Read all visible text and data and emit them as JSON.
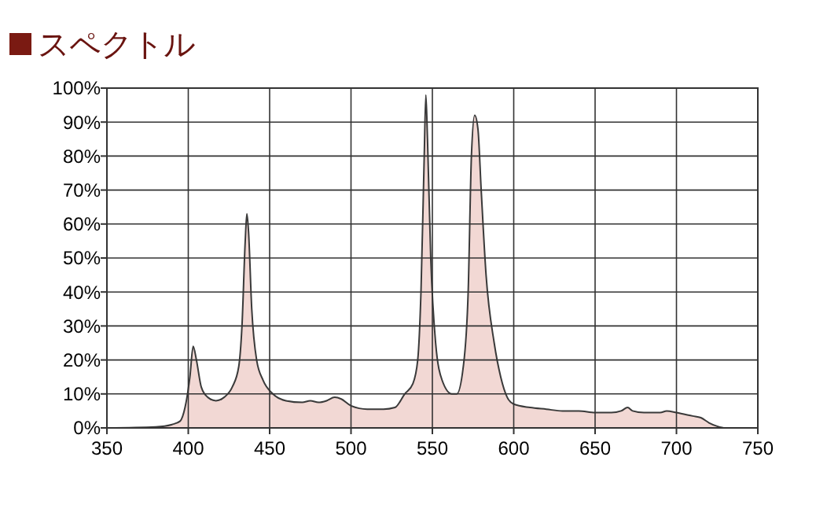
{
  "chart_data": {
    "type": "area",
    "title": "スペクトル",
    "color": "#f2d8d4",
    "x": [
      350,
      380,
      390,
      395,
      398,
      401,
      403,
      405,
      408,
      412,
      417,
      422,
      427,
      431,
      433,
      435,
      436,
      437,
      439,
      442,
      446,
      452,
      460,
      470,
      475,
      480,
      485,
      490,
      494,
      500,
      510,
      520,
      527,
      533,
      538,
      541,
      543,
      545,
      546,
      547,
      549,
      552,
      556,
      562,
      565,
      569,
      572,
      574,
      576,
      578,
      580,
      583,
      588,
      592,
      596,
      600,
      610,
      620,
      630,
      640,
      650,
      660,
      666,
      670,
      673,
      680,
      690,
      694,
      700,
      710,
      715,
      720,
      725,
      730,
      750
    ],
    "values": [
      0,
      0.3,
      1,
      2,
      6,
      15,
      24,
      20,
      12,
      9,
      8,
      9,
      12,
      18,
      30,
      55,
      63,
      58,
      35,
      20,
      14,
      10,
      8,
      7.5,
      8,
      7.5,
      8,
      9,
      8.5,
      6.5,
      5.5,
      5.5,
      6,
      10,
      13,
      20,
      40,
      80,
      98,
      85,
      50,
      25,
      14,
      10,
      10,
      18,
      40,
      80,
      92,
      88,
      70,
      45,
      25,
      15,
      9,
      7,
      6,
      5.5,
      5,
      5,
      4.5,
      4.5,
      5,
      6,
      5,
      4.5,
      4.5,
      5,
      4.5,
      3.5,
      3,
      1.5,
      0.5,
      0,
      0
    ],
    "xlim": [
      350,
      750
    ],
    "xticks": [
      350,
      400,
      450,
      500,
      550,
      600,
      650,
      700,
      750
    ],
    "ylim": [
      0,
      100
    ],
    "yticks": [
      {
        "value": 0,
        "label": "0%"
      },
      {
        "value": 10,
        "label": "10%"
      },
      {
        "value": 20,
        "label": "20%"
      },
      {
        "value": 30,
        "label": "30%"
      },
      {
        "value": 40,
        "label": "40%"
      },
      {
        "value": 50,
        "label": "50%"
      },
      {
        "value": 60,
        "label": "60%"
      },
      {
        "value": 70,
        "label": "70%"
      },
      {
        "value": 80,
        "label": "80%"
      },
      {
        "value": 90,
        "label": "90%"
      },
      {
        "value": 100,
        "label": "100%"
      }
    ],
    "grid": true
  }
}
